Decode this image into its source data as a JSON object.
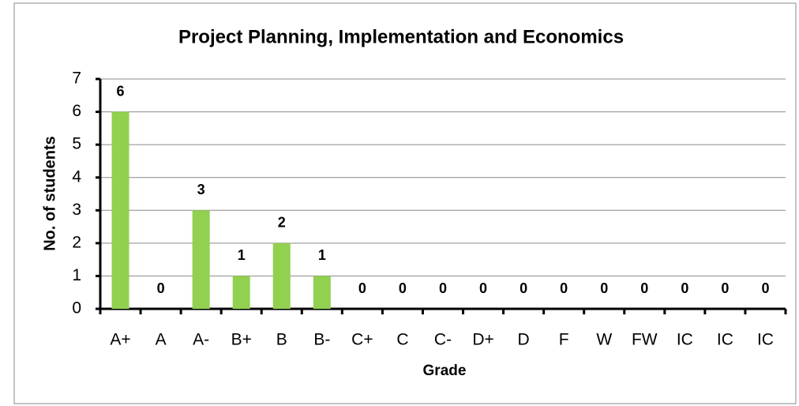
{
  "chart_data": {
    "type": "bar",
    "title": "Project Planning, Implementation and Economics",
    "y_label": "No. of students",
    "x_label": "Grade",
    "categories": [
      "A+",
      "A",
      "A-",
      "B+",
      "B",
      "B-",
      "C+",
      "C",
      "C-",
      "D+",
      "D",
      "F",
      "W",
      "FW",
      "IC",
      "IC",
      "IC"
    ],
    "values": [
      6,
      0,
      3,
      1,
      2,
      1,
      0,
      0,
      0,
      0,
      0,
      0,
      0,
      0,
      0,
      0,
      0
    ],
    "color": "#92d050",
    "ylim": [
      0,
      7
    ],
    "yticks": [
      0,
      1,
      2,
      3,
      4,
      5,
      6,
      7
    ],
    "grid": true
  }
}
